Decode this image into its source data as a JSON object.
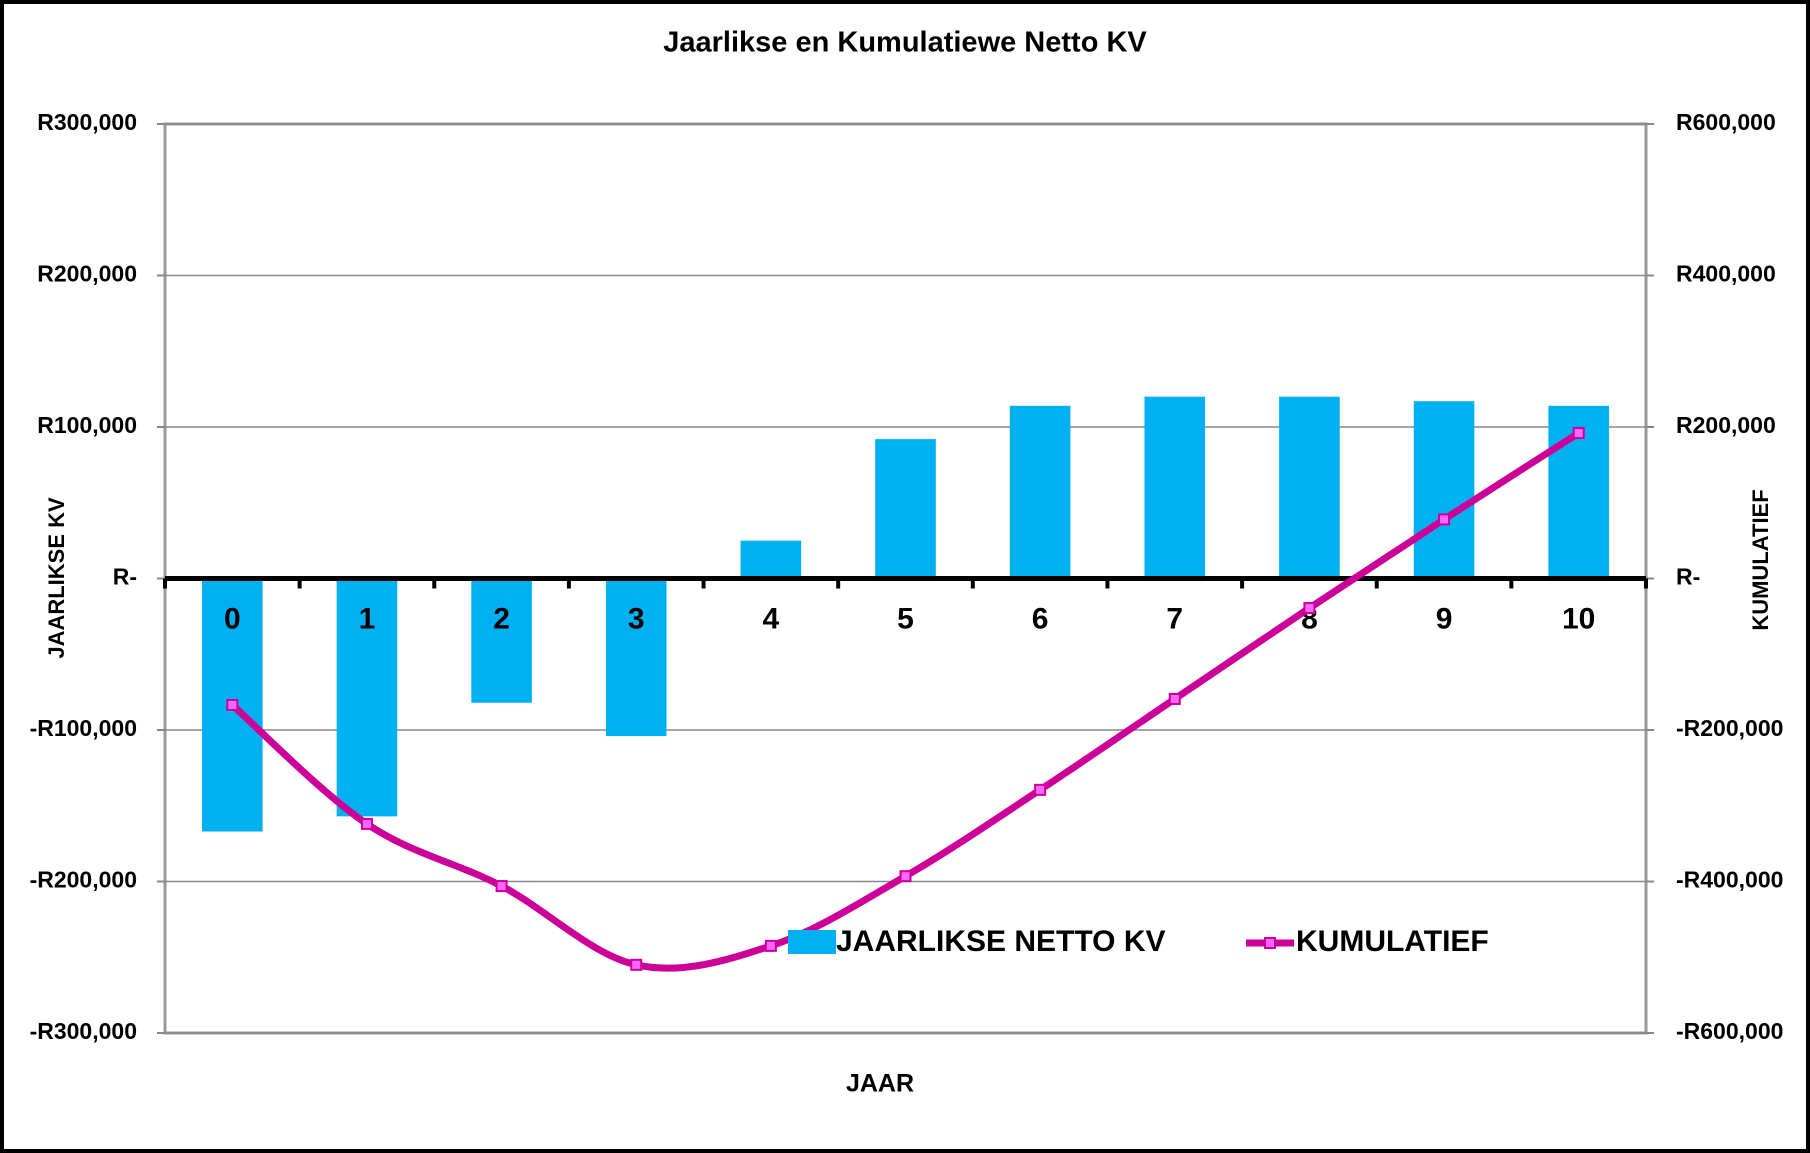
{
  "chart_data": {
    "type": "bar-line",
    "title": "Jaarlikse en Kumulatiewe Netto KV",
    "xlabel": "JAAR",
    "ylabel": "JAARLIKSE KV",
    "y2label": "KUMULATIEF",
    "categories": [
      "0",
      "1",
      "2",
      "3",
      "4",
      "5",
      "6",
      "7",
      "8",
      "9",
      "10"
    ],
    "series": [
      {
        "name": "JAARLIKSE NETTO KV",
        "type": "bar",
        "color": "#00b0f0",
        "axis": "y",
        "values": [
          -167000,
          -157000,
          -82000,
          -104000,
          25000,
          92000,
          114000,
          120000,
          120000,
          117000,
          114000
        ]
      },
      {
        "name": "KUMULATIEF",
        "type": "line",
        "color": "#cc0099",
        "marker_color": "#ff66ff",
        "axis": "y2",
        "values": [
          -167000,
          -324000,
          -406000,
          -510000,
          -485000,
          -393000,
          -279000,
          -159000,
          -39000,
          78000,
          192000
        ]
      }
    ],
    "ylim": [
      -300000,
      300000
    ],
    "yticks": [
      {
        "value": -300000,
        "label": "-R300,000"
      },
      {
        "value": -200000,
        "label": "-R200,000"
      },
      {
        "value": -100000,
        "label": "-R100,000"
      },
      {
        "value": 0,
        "label": "R-"
      },
      {
        "value": 100000,
        "label": "R100,000"
      },
      {
        "value": 200000,
        "label": "R200,000"
      },
      {
        "value": 300000,
        "label": "R300,000"
      }
    ],
    "y2lim": [
      -600000,
      600000
    ],
    "y2ticks": [
      {
        "value": -600000,
        "label": "-R600,000"
      },
      {
        "value": -400000,
        "label": "-R400,000"
      },
      {
        "value": -200000,
        "label": "-R200,000"
      },
      {
        "value": 0,
        "label": "R-"
      },
      {
        "value": 200000,
        "label": "R200,000"
      },
      {
        "value": 400000,
        "label": "R400,000"
      },
      {
        "value": 600000,
        "label": "R600,000"
      }
    ],
    "grid": true,
    "legend": "bottom-right"
  }
}
